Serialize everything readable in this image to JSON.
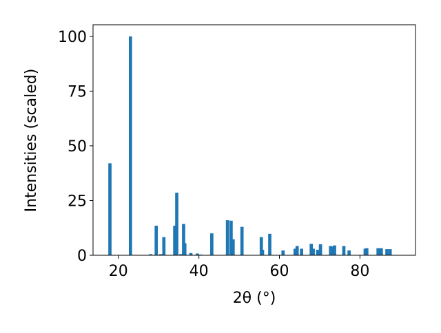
{
  "chart_data": {
    "type": "bar",
    "x_label": "2θ (°)",
    "y_label": "Intensities (scaled)",
    "x": [
      17.9,
      23.0,
      28.0,
      29.4,
      30.5,
      31.3,
      34.0,
      34.5,
      35.5,
      36.2,
      36.5,
      38.0,
      39.6,
      40.5,
      43.2,
      47.1,
      48.0,
      48.5,
      50.7,
      55.5,
      55.8,
      57.6,
      60.9,
      63.9,
      64.4,
      65.5,
      67.9,
      68.4,
      69.5,
      70.2,
      72.7,
      73.2,
      73.7,
      76.0,
      77.3,
      81.3,
      81.7,
      84.5,
      85.3,
      86.7,
      87.5
    ],
    "values": [
      42,
      100,
      0.5,
      13.5,
      0.5,
      8.3,
      13.5,
      28.6,
      0.5,
      14.3,
      5.5,
      1,
      0.8,
      0.3,
      10,
      16,
      15.8,
      7.3,
      13,
      8.3,
      2.5,
      9.8,
      2.2,
      3,
      4.2,
      3,
      5.2,
      3,
      2.5,
      5,
      4.2,
      4,
      4.5,
      4.2,
      2.2,
      3,
      3.2,
      3.2,
      3.2,
      2.8,
      2.8
    ],
    "color": "#1f77b4",
    "xlim": [
      13.7,
      93.8
    ],
    "xticks": [
      20,
      40,
      60,
      80
    ],
    "ylim": [
      0,
      105.3
    ],
    "yticks": [
      0,
      25,
      50,
      75,
      100
    ]
  }
}
